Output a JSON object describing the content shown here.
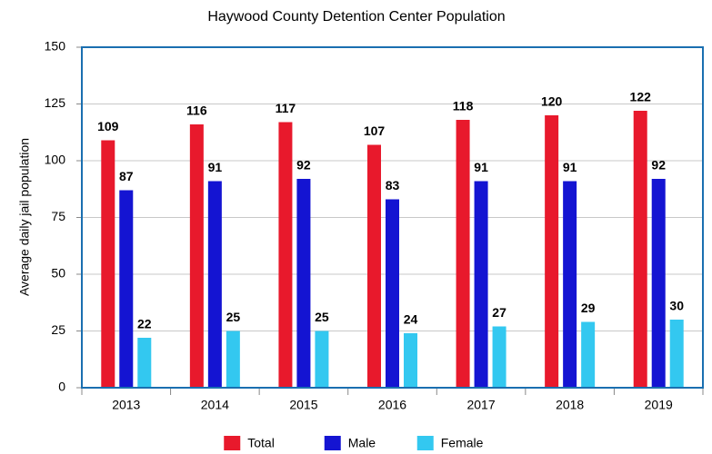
{
  "chart_data": {
    "type": "bar",
    "title": "Haywood County Detention Center Population",
    "y_label": "Average daily jail population",
    "categories": [
      "2013",
      "2014",
      "2015",
      "2016",
      "2017",
      "2018",
      "2019"
    ],
    "series": [
      {
        "name": "Total",
        "color": "#e8192c",
        "values": [
          109,
          116,
          117,
          107,
          118,
          120,
          122
        ]
      },
      {
        "name": "Male",
        "color": "#1414d2",
        "values": [
          87,
          91,
          92,
          83,
          91,
          91,
          92
        ]
      },
      {
        "name": "Female",
        "color": "#33c8f0",
        "values": [
          22,
          25,
          25,
          24,
          27,
          29,
          30
        ]
      }
    ],
    "ylim": [
      0,
      150
    ],
    "yticks": [
      0,
      25,
      50,
      75,
      100,
      125,
      150
    ],
    "grid": true,
    "legend": "bottom"
  }
}
